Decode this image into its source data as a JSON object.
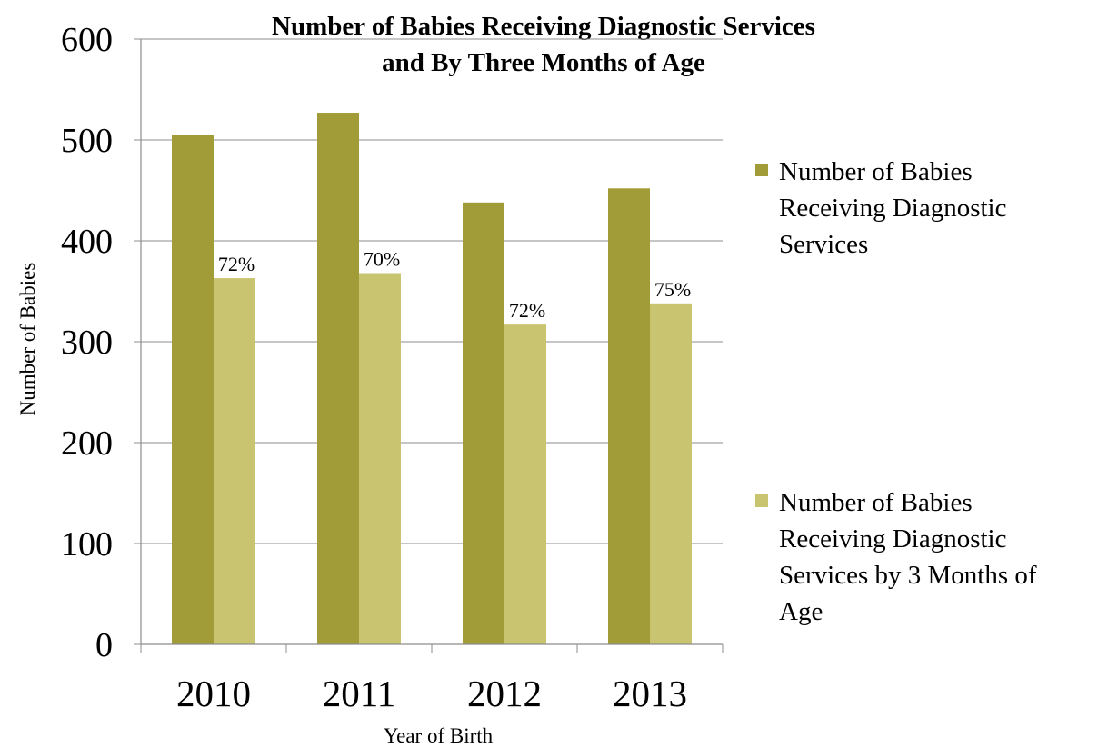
{
  "chart_data": {
    "type": "bar",
    "title": [
      "Number of Babies Receiving Diagnostic Services",
      "and By Three Months of Age"
    ],
    "xlabel": "Year of Birth",
    "ylabel": "Number of Babies",
    "categories": [
      "2010",
      "2011",
      "2012",
      "2013"
    ],
    "ylim": [
      0,
      600
    ],
    "yticks": [
      0,
      100,
      200,
      300,
      400,
      500,
      600
    ],
    "grid": true,
    "legend_position": "right",
    "series": [
      {
        "name": "Number of Babies Receiving Diagnostic Services",
        "legend_lines": [
          "Number of Babies",
          "Receiving Diagnostic",
          "Services"
        ],
        "color": "#a19c38",
        "values": [
          505,
          527,
          438,
          452
        ]
      },
      {
        "name": "Number of Babies Receiving Diagnostic Services by 3 Months of Age",
        "legend_lines": [
          "Number of Babies",
          "Receiving Diagnostic",
          "Services by 3 Months of",
          "Age"
        ],
        "color": "#c9c46f",
        "values": [
          363,
          368,
          317,
          338
        ],
        "data_labels": [
          "72%",
          "70%",
          "72%",
          "75%"
        ]
      }
    ],
    "colors": {
      "gridline": "#8c8c8c",
      "axis": "#8c8c8c"
    }
  }
}
